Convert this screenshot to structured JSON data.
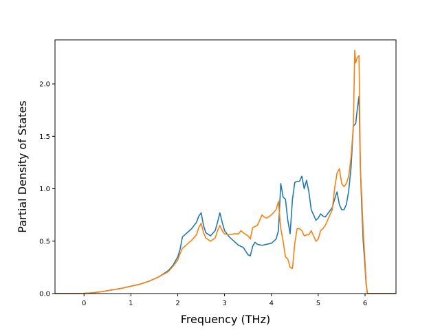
{
  "chart_data": {
    "type": "line",
    "xlabel": "Frequency (THz)",
    "ylabel": "Partial Density of States",
    "xlim": [
      -0.62,
      6.66
    ],
    "ylim": [
      0,
      2.42
    ],
    "xticks": [
      0,
      1,
      2,
      3,
      4,
      5,
      6
    ],
    "yticks": [
      0.0,
      0.5,
      1.0,
      1.5,
      2.0
    ],
    "ytick_labels": [
      "0.0",
      "0.5",
      "1.0",
      "1.5",
      "2.0"
    ],
    "grid": false,
    "series": [
      {
        "color": "#1f77b4",
        "x": [
          -0.62,
          -0.2,
          0.0,
          0.2,
          0.4,
          0.6,
          0.8,
          1.0,
          1.2,
          1.4,
          1.6,
          1.8,
          1.9,
          2.0,
          2.05,
          2.1,
          2.2,
          2.3,
          2.4,
          2.45,
          2.5,
          2.55,
          2.6,
          2.7,
          2.8,
          2.85,
          2.9,
          2.95,
          3.0,
          3.1,
          3.2,
          3.3,
          3.4,
          3.5,
          3.55,
          3.6,
          3.65,
          3.7,
          3.8,
          3.9,
          4.0,
          4.1,
          4.15,
          4.2,
          4.25,
          4.3,
          4.35,
          4.4,
          4.45,
          4.5,
          4.55,
          4.6,
          4.65,
          4.7,
          4.75,
          4.8,
          4.85,
          4.9,
          4.95,
          5.0,
          5.05,
          5.1,
          5.15,
          5.2,
          5.25,
          5.3,
          5.35,
          5.4,
          5.45,
          5.5,
          5.55,
          5.6,
          5.65,
          5.7,
          5.75,
          5.8,
          5.83,
          5.87,
          5.9,
          5.93,
          5.96,
          6.0,
          6.02,
          6.05,
          6.66
        ],
        "y": [
          0.0,
          0.0,
          0.002,
          0.008,
          0.02,
          0.035,
          0.05,
          0.07,
          0.09,
          0.12,
          0.16,
          0.22,
          0.27,
          0.35,
          0.42,
          0.54,
          0.58,
          0.62,
          0.68,
          0.74,
          0.77,
          0.65,
          0.58,
          0.55,
          0.6,
          0.68,
          0.77,
          0.68,
          0.6,
          0.54,
          0.5,
          0.46,
          0.44,
          0.37,
          0.36,
          0.45,
          0.49,
          0.47,
          0.46,
          0.47,
          0.48,
          0.52,
          0.6,
          1.05,
          0.92,
          0.9,
          0.7,
          0.57,
          0.9,
          1.06,
          1.07,
          1.07,
          1.12,
          1.0,
          1.08,
          0.97,
          0.8,
          0.75,
          0.7,
          0.72,
          0.76,
          0.74,
          0.73,
          0.76,
          0.79,
          0.82,
          0.9,
          0.97,
          0.85,
          0.8,
          0.8,
          0.85,
          0.98,
          1.2,
          1.6,
          1.62,
          1.75,
          1.88,
          1.2,
          0.8,
          0.5,
          0.25,
          0.1,
          0.0,
          0.0
        ]
      },
      {
        "color": "#ff7f0e",
        "x": [
          -0.62,
          -0.2,
          0.0,
          0.2,
          0.4,
          0.6,
          0.8,
          1.0,
          1.2,
          1.4,
          1.6,
          1.8,
          1.9,
          2.0,
          2.05,
          2.1,
          2.2,
          2.3,
          2.4,
          2.45,
          2.5,
          2.55,
          2.6,
          2.7,
          2.8,
          2.85,
          2.9,
          2.95,
          3.0,
          3.1,
          3.2,
          3.3,
          3.35,
          3.4,
          3.5,
          3.55,
          3.6,
          3.65,
          3.7,
          3.75,
          3.8,
          3.85,
          3.9,
          4.0,
          4.1,
          4.15,
          4.2,
          4.25,
          4.3,
          4.35,
          4.4,
          4.45,
          4.5,
          4.55,
          4.6,
          4.65,
          4.7,
          4.75,
          4.8,
          4.85,
          4.9,
          4.95,
          5.0,
          5.05,
          5.1,
          5.15,
          5.2,
          5.25,
          5.3,
          5.35,
          5.4,
          5.45,
          5.5,
          5.55,
          5.6,
          5.65,
          5.7,
          5.75,
          5.78,
          5.8,
          5.83,
          5.87,
          5.9,
          5.93,
          5.96,
          6.0,
          6.02,
          6.05,
          6.66
        ],
        "y": [
          0.0,
          0.0,
          0.002,
          0.008,
          0.02,
          0.035,
          0.05,
          0.07,
          0.09,
          0.12,
          0.16,
          0.21,
          0.26,
          0.32,
          0.38,
          0.43,
          0.47,
          0.51,
          0.56,
          0.63,
          0.67,
          0.58,
          0.53,
          0.5,
          0.53,
          0.6,
          0.65,
          0.6,
          0.57,
          0.56,
          0.57,
          0.57,
          0.6,
          0.58,
          0.55,
          0.52,
          0.63,
          0.64,
          0.65,
          0.7,
          0.75,
          0.73,
          0.72,
          0.75,
          0.8,
          0.88,
          0.62,
          0.5,
          0.35,
          0.33,
          0.25,
          0.24,
          0.48,
          0.62,
          0.62,
          0.6,
          0.55,
          0.56,
          0.56,
          0.6,
          0.55,
          0.5,
          0.52,
          0.6,
          0.62,
          0.65,
          0.7,
          0.75,
          0.8,
          1.0,
          1.15,
          1.19,
          1.05,
          1.02,
          1.05,
          1.12,
          1.3,
          1.6,
          2.32,
          2.2,
          2.25,
          2.27,
          1.2,
          0.9,
          0.6,
          0.3,
          0.12,
          0.0,
          0.0
        ]
      }
    ]
  }
}
